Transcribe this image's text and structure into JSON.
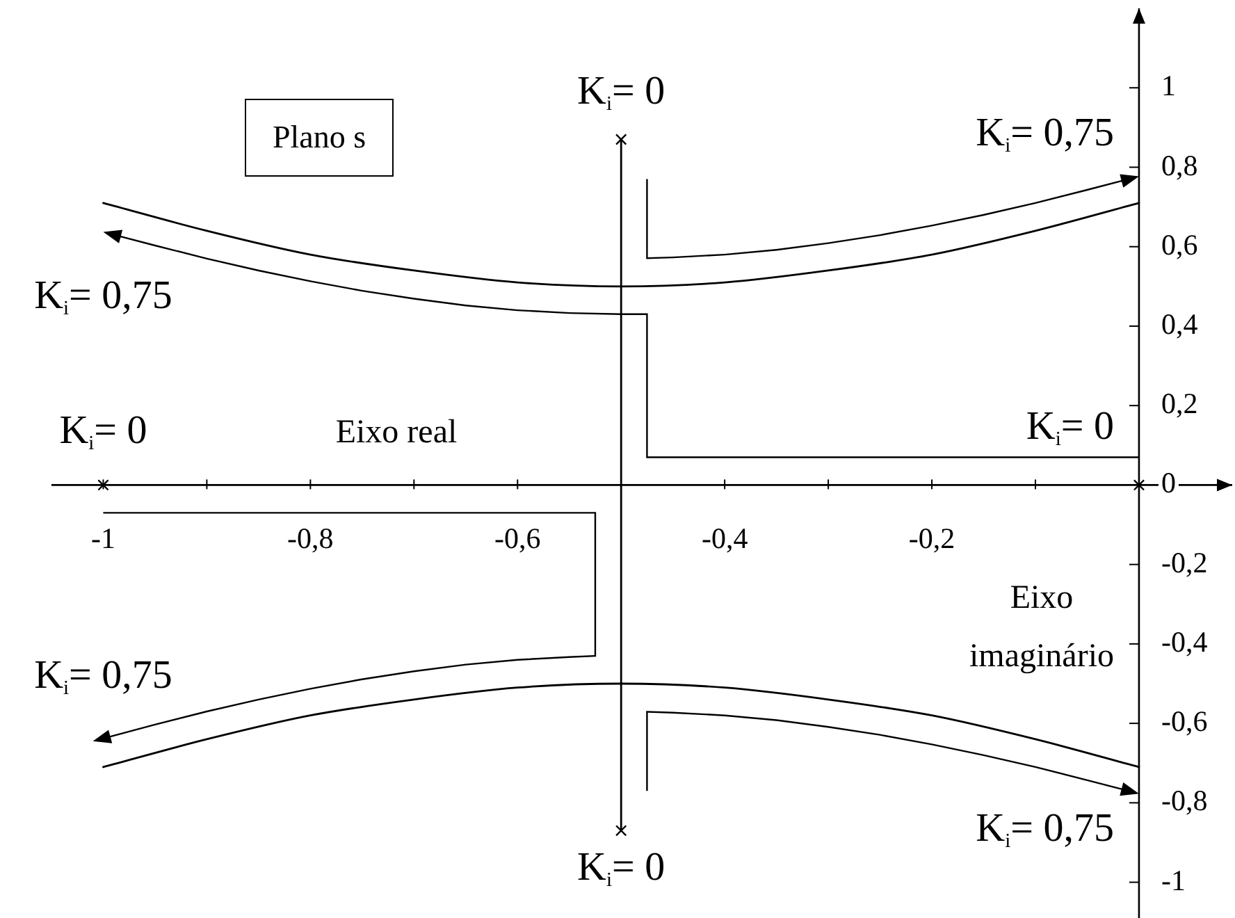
{
  "chart_data": {
    "type": "line",
    "title": "Plano s",
    "xlabel": "Eixo real",
    "ylabel": "Eixo imaginário",
    "xlim": [
      -1.05,
      0.09
    ],
    "ylim": [
      -1.09,
      1.2
    ],
    "xticks": [
      -1,
      {
        "value": -0.9,
        "label": null
      },
      {
        "value": -0.8,
        "label": "-0,8"
      },
      {
        "value": -0.7,
        "label": null
      },
      {
        "value": -0.6,
        "label": "-0,6"
      },
      {
        "value": -0.4,
        "label": "-0,4"
      },
      {
        "value": -0.3,
        "label": null
      },
      {
        "value": -0.2,
        "label": "-0,2"
      },
      {
        "value": -0.1,
        "label": null
      }
    ],
    "yticks": [
      1,
      {
        "value": 0.8,
        "label": "0,8"
      },
      {
        "value": 0.6,
        "label": "0,6"
      },
      {
        "value": 0.4,
        "label": "0,4"
      },
      {
        "value": 0.2,
        "label": "0,2"
      },
      0,
      {
        "value": -0.2,
        "label": "-0,2"
      },
      {
        "value": -0.4,
        "label": "-0,4"
      },
      {
        "value": -0.6,
        "label": "-0,6"
      },
      {
        "value": -0.8,
        "label": "-0,8"
      },
      -1
    ],
    "series": [
      {
        "type": "line",
        "color": "#000000",
        "x": [
          -1,
          -0.9,
          -0.8,
          -0.7,
          -0.6,
          -0.5,
          -0.4,
          -0.3,
          -0.2,
          -0.1,
          0
        ],
        "values": [
          0.71,
          0.64,
          0.58,
          0.54,
          0.51,
          0.5,
          0.51,
          0.54,
          0.58,
          0.64,
          0.71
        ]
      },
      {
        "type": "line",
        "color": "#000000",
        "x": [
          -1,
          -0.9,
          -0.8,
          -0.7,
          -0.6,
          -0.5,
          -0.4,
          -0.3,
          -0.2,
          -0.1,
          0
        ],
        "values": [
          -0.71,
          -0.64,
          -0.58,
          -0.54,
          -0.51,
          -0.5,
          -0.51,
          -0.54,
          -0.58,
          -0.64,
          -0.71
        ]
      },
      {
        "type": "line",
        "color": "#000000",
        "x": [
          -0.5,
          -0.5
        ],
        "values": [
          0.87,
          -0.87
        ]
      },
      {
        "type": "scatter",
        "color": "#000000",
        "marker": "cross",
        "x": [
          -1,
          0,
          -0.5,
          -0.5
        ],
        "values": [
          0,
          0,
          0.87,
          -0.87
        ]
      }
    ],
    "annotations": [
      {
        "text": "K$_{i}$= 0",
        "x": -0.5,
        "y": 0.87
      },
      {
        "text": "K$_{i}$= 0,75",
        "x": 0,
        "y": 0.71
      },
      {
        "text": "K$_{i}$= 0,75",
        "x": -1,
        "y": 0.71
      },
      {
        "text": "K$_{i}$= 0",
        "x": -1,
        "y": 0
      },
      {
        "text": "K$_{i}$= 0",
        "x": 0,
        "y": 0
      },
      {
        "text": "K$_{i}$= 0,75",
        "x": -1,
        "y": -0.71
      },
      {
        "text": "K$_{i}$= 0,75",
        "x": 0,
        "y": -0.71
      },
      {
        "text": "K$_{i}$= 0",
        "x": -0.5,
        "y": -0.87
      }
    ]
  }
}
